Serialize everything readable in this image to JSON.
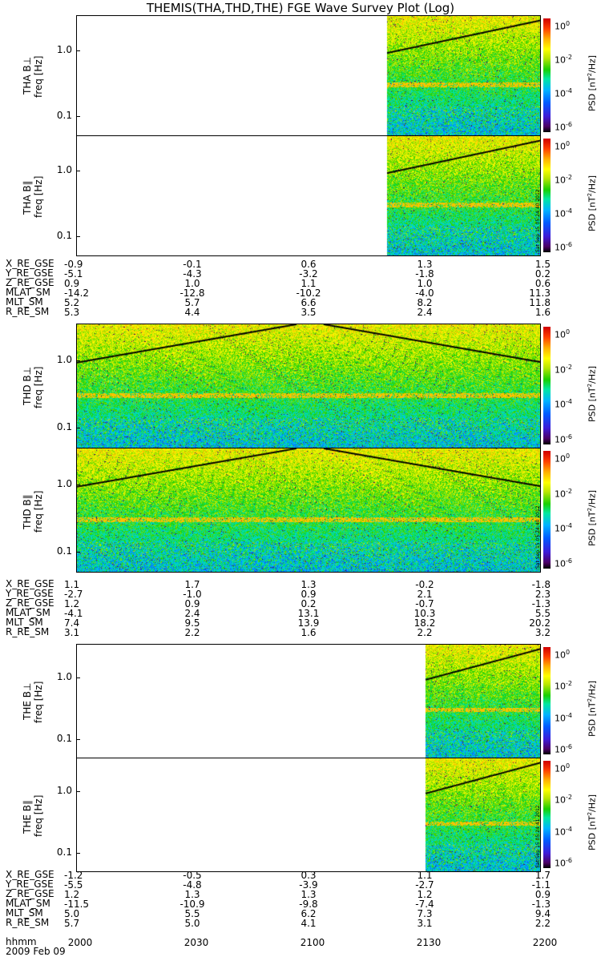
{
  "title": "THEMIS(THA,THD,THE) FGE Wave Survey Plot (Log)",
  "freq_axis_label": "freq [Hz]",
  "freq_ticks": [
    "1.0",
    "0.1"
  ],
  "colorbar": {
    "label": "PSD [nT²/Hz]",
    "ticks": [
      "10",
      "10",
      "10",
      "10"
    ],
    "exponents": [
      "0",
      "-2",
      "-4",
      "-6"
    ]
  },
  "stamps": [
    "Sat Sep 15 05:24:40 2012",
    "Sat Sep 15 05:24:40 2012",
    "Sat Sep 15 05:24:41 2012"
  ],
  "ephem_labels": [
    "X_RE_GSE",
    "Y_RE_GSE",
    "Z_RE_GSE",
    "MLAT_SM",
    "MLT_SM",
    "R_RE_SM"
  ],
  "time_labels": [
    "hhmm",
    "2009 Feb 09"
  ],
  "time_ticks": [
    "2000",
    "2030",
    "2100",
    "2130",
    "2200"
  ],
  "chart_data": [
    {
      "type": "heatmap",
      "probe": "THA",
      "panels": [
        "THA B⊥",
        "THA B∥"
      ],
      "x": [
        "2000",
        "2030",
        "2100",
        "2130",
        "2200"
      ],
      "data_start": "2120",
      "ylabel": "freq [Hz]",
      "scale": "log",
      "ylim": [
        0.05,
        3.5
      ],
      "zlim": [
        1e-06,
        10
      ],
      "ephemeris": {
        "X_RE_GSE": [
          "-0.9",
          "-0.1",
          "0.6",
          "1.3",
          "1.5"
        ],
        "Y_RE_GSE": [
          "-5.1",
          "-4.3",
          "-3.2",
          "-1.8",
          "0.2"
        ],
        "Z_RE_GSE": [
          "0.9",
          "1.0",
          "1.1",
          "1.0",
          "0.6"
        ],
        "MLAT_SM": [
          "-14.2",
          "-12.8",
          "-10.2",
          "-4.0",
          "11.3"
        ],
        "MLT_SM": [
          "5.2",
          "5.7",
          "6.6",
          "8.2",
          "11.8"
        ],
        "R_RE_SM": [
          "5.3",
          "4.4",
          "3.5",
          "2.4",
          "1.6"
        ]
      }
    },
    {
      "type": "heatmap",
      "probe": "THD",
      "panels": [
        "THD B⊥",
        "THD B∥"
      ],
      "x": [
        "2000",
        "2030",
        "2100",
        "2130",
        "2200"
      ],
      "data_start": "2000",
      "ylabel": "freq [Hz]",
      "scale": "log",
      "ylim": [
        0.05,
        3.5
      ],
      "zlim": [
        1e-06,
        10
      ],
      "ephemeris": {
        "X_RE_GSE": [
          "1.1",
          "1.7",
          "1.3",
          "-0.2",
          "-1.8"
        ],
        "Y_RE_GSE": [
          "-2.7",
          "-1.0",
          "0.9",
          "2.1",
          "2.3"
        ],
        "Z_RE_GSE": [
          "1.2",
          "0.9",
          "0.2",
          "-0.7",
          "-1.3"
        ],
        "MLAT_SM": [
          "-4.1",
          "2.4",
          "13.1",
          "10.3",
          "5.5"
        ],
        "MLT_SM": [
          "7.4",
          "9.5",
          "13.9",
          "18.2",
          "20.2"
        ],
        "R_RE_SM": [
          "3.1",
          "2.2",
          "1.6",
          "2.2",
          "3.2"
        ]
      }
    },
    {
      "type": "heatmap",
      "probe": "THE",
      "panels": [
        "THE B⊥",
        "THE B∥"
      ],
      "x": [
        "2000",
        "2030",
        "2100",
        "2130",
        "2200"
      ],
      "data_start": "2130",
      "ylabel": "freq [Hz]",
      "scale": "log",
      "ylim": [
        0.05,
        3.5
      ],
      "zlim": [
        1e-06,
        10
      ],
      "ephemeris": {
        "X_RE_GSE": [
          "-1.2",
          "-0.5",
          "0.3",
          "1.1",
          "1.7"
        ],
        "Y_RE_GSE": [
          "-5.5",
          "-4.8",
          "-3.9",
          "-2.7",
          "-1.1"
        ],
        "Z_RE_GSE": [
          "1.2",
          "1.3",
          "1.3",
          "1.2",
          "0.9"
        ],
        "MLAT_SM": [
          "-11.5",
          "-10.9",
          "-9.8",
          "-7.4",
          "-1.3"
        ],
        "MLT_SM": [
          "5.0",
          "5.5",
          "6.2",
          "7.3",
          "9.4"
        ],
        "R_RE_SM": [
          "5.7",
          "5.0",
          "4.1",
          "3.1",
          "2.2"
        ]
      }
    }
  ]
}
